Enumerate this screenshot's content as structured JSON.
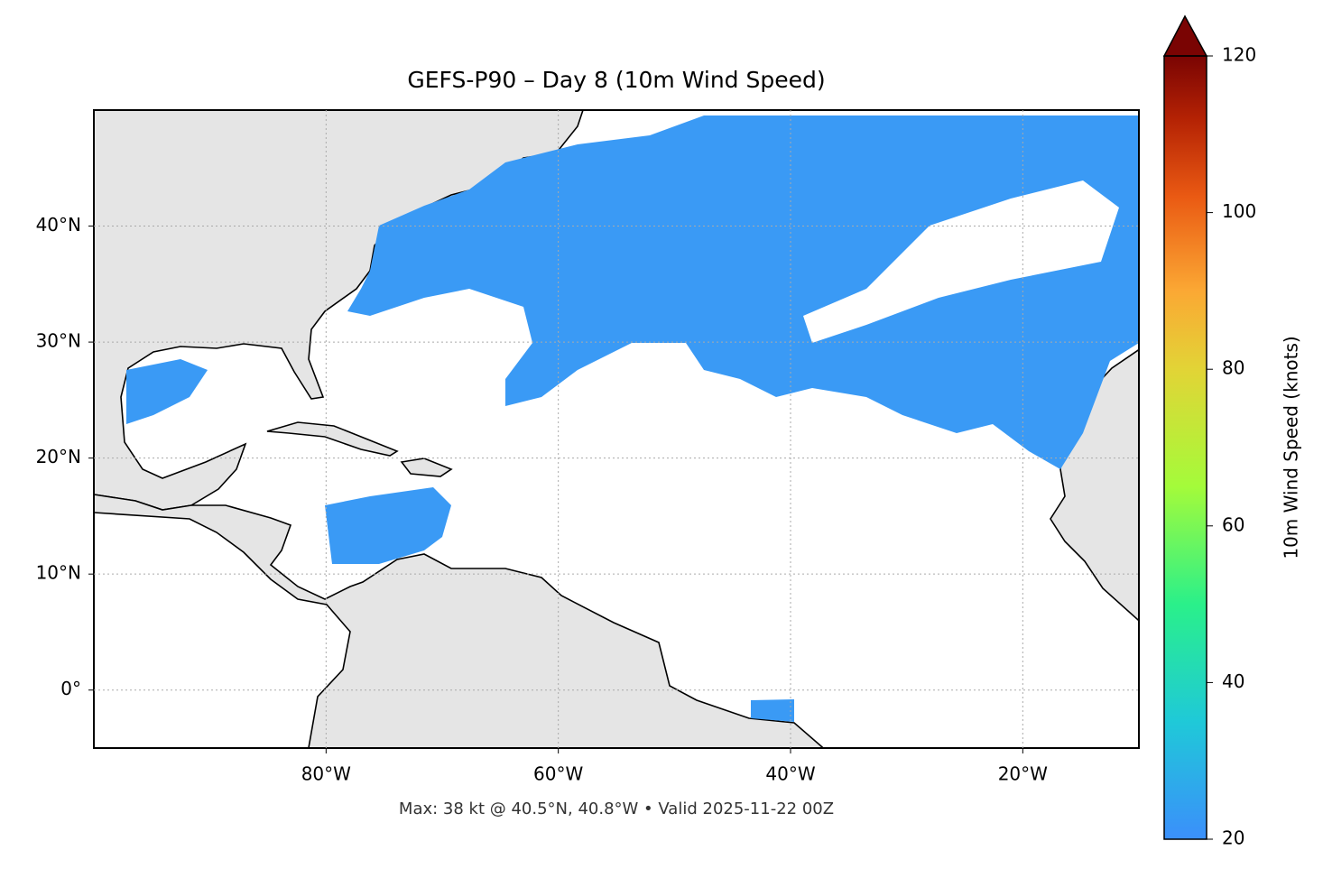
{
  "map": {
    "title": "GEFS-P90 – Day 8 (10m Wind Speed)",
    "lonlim": [
      -100,
      -10
    ],
    "latlim": [
      -5,
      50
    ],
    "lonticks": [
      {
        "value": -80,
        "label": "80°W"
      },
      {
        "value": -60,
        "label": "60°W"
      },
      {
        "value": -40,
        "label": "40°W"
      },
      {
        "value": -20,
        "label": "20°W"
      }
    ],
    "latticks": [
      {
        "value": 0,
        "label": "0°"
      },
      {
        "value": 10,
        "label": "10°N"
      },
      {
        "value": 20,
        "label": "20°N"
      },
      {
        "value": 30,
        "label": "30°N"
      },
      {
        "value": 40,
        "label": "40°N"
      }
    ],
    "grid": true,
    "colorbar": {
      "label": "10m Wind Speed (knots)",
      "lim": [
        20,
        120
      ],
      "ticks": [
        20,
        40,
        60,
        80,
        100,
        120
      ]
    },
    "footer": "Max: 38 kt @ 40.5°N, 40.8°W • Valid 2025-11-22 00Z"
  }
}
